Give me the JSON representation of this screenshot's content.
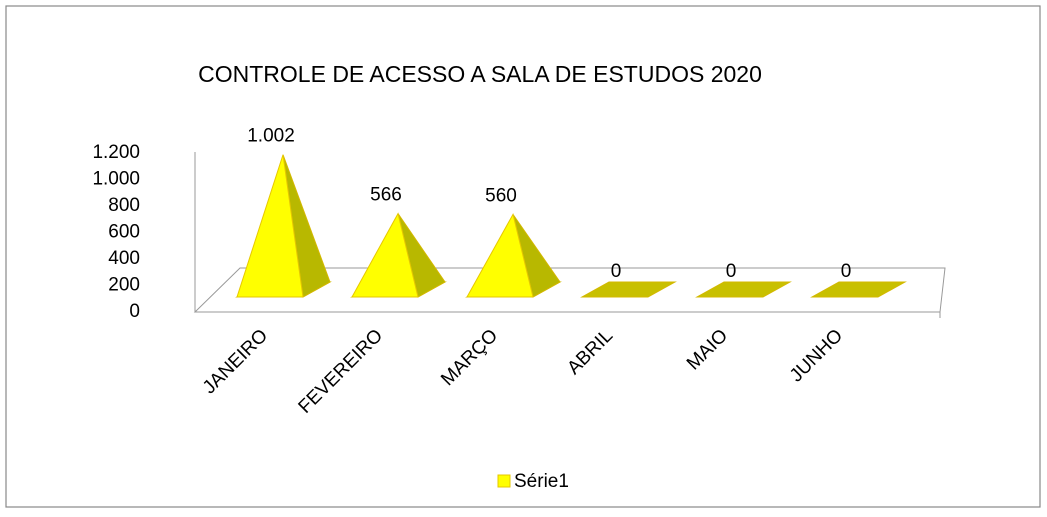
{
  "chart_data": {
    "type": "pyramid3d",
    "title": "CONTROLE DE ACESSO A  SALA DE ESTUDOS 2020",
    "categories": [
      "JANEIRO",
      "FEVEREIRO",
      "MARÇO",
      "ABRIL",
      "MAIO",
      "JUNHO"
    ],
    "series": [
      {
        "name": "Série1",
        "color": "#ffff00",
        "values": [
          1002,
          566,
          560,
          0,
          0,
          0
        ],
        "value_labels": [
          "1.002",
          "566",
          "560",
          "0",
          "0",
          "0"
        ]
      }
    ],
    "ylim": [
      0,
      1200
    ],
    "yticks": [
      0,
      200,
      400,
      600,
      800,
      {
        "value": 1000,
        "label": "1.000"
      },
      {
        "value": 1200,
        "label": "1.200"
      }
    ],
    "legend": "bottom"
  }
}
